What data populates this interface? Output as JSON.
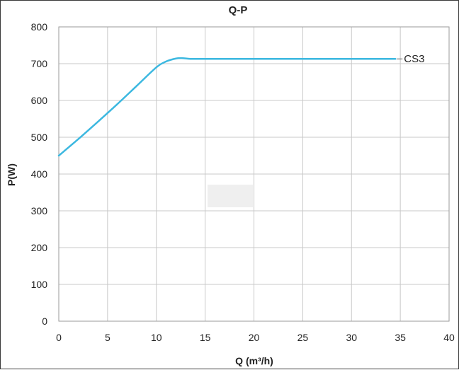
{
  "chart_data": {
    "type": "line",
    "title": "Q-P",
    "xlabel": "Q (m³/h)",
    "ylabel": "P(W)",
    "xlim": [
      0,
      40
    ],
    "ylim": [
      0,
      800
    ],
    "xticks": [
      0,
      5,
      10,
      15,
      20,
      25,
      30,
      35,
      40
    ],
    "yticks": [
      0,
      100,
      200,
      300,
      400,
      500,
      600,
      700,
      800
    ],
    "grid": true,
    "series": [
      {
        "name": "CS3",
        "color": "#3cb8e0",
        "x": [
          0,
          2,
          4,
          6,
          8,
          10,
          11,
          12,
          12.7,
          13.5,
          15,
          20,
          25,
          30,
          34.5
        ],
        "y": [
          450,
          495,
          542,
          590,
          640,
          690,
          706,
          714,
          715,
          713,
          713,
          713,
          713,
          713,
          713
        ]
      }
    ]
  }
}
